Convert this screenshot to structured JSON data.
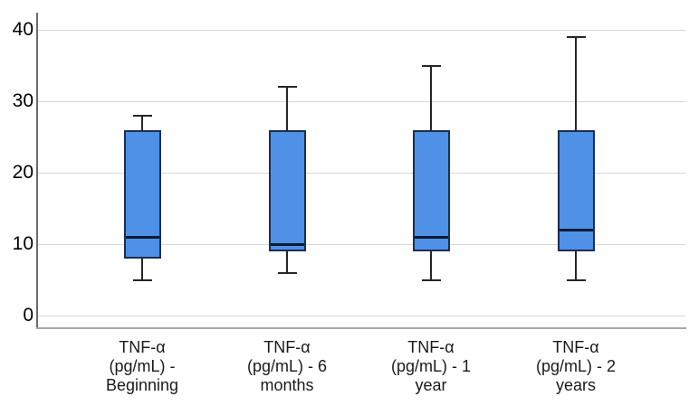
{
  "chart_data": {
    "type": "boxplot",
    "title": "",
    "xlabel": "",
    "ylabel": "",
    "categories": [
      {
        "label": "TNF-α (pg/mL) - Beginning",
        "lines": [
          "TNF-α",
          "(pg/mL) -",
          "Beginning"
        ]
      },
      {
        "label": "TNF-α (pg/mL) - 6 months",
        "lines": [
          "TNF-α",
          "(pg/mL) - 6",
          "months"
        ]
      },
      {
        "label": "TNF-α (pg/mL) - 1 year",
        "lines": [
          "TNF-α",
          "(pg/mL) - 1",
          "year"
        ]
      },
      {
        "label": "TNF-α (pg/mL) - 2 years",
        "lines": [
          "TNF-α",
          "(pg/mL) - 2",
          "years"
        ]
      }
    ],
    "boxes": [
      {
        "whisker_low": 5,
        "q1": 8,
        "median": 11,
        "q3": 26,
        "whisker_high": 28
      },
      {
        "whisker_low": 6,
        "q1": 9,
        "median": 10,
        "q3": 26,
        "whisker_high": 32
      },
      {
        "whisker_low": 5,
        "q1": 9,
        "median": 11,
        "q3": 26,
        "whisker_high": 35
      },
      {
        "whisker_low": 5,
        "q1": 9,
        "median": 12,
        "q3": 26,
        "whisker_high": 39
      }
    ],
    "yticks": [
      0,
      10,
      20,
      30,
      40
    ],
    "ylim": [
      0,
      42.5
    ],
    "grid": true,
    "legend": "none",
    "colors": {
      "box_fill": "#4e91e6",
      "box_border": "#1c2e52",
      "median": "#0c1b33",
      "whisker": "#262626",
      "gridline": "#d7d7d7",
      "axis_line": "#6b6b6b",
      "bottom_border": "#a6a6a6",
      "tick_label": "#000000",
      "background": "#ffffff"
    }
  }
}
